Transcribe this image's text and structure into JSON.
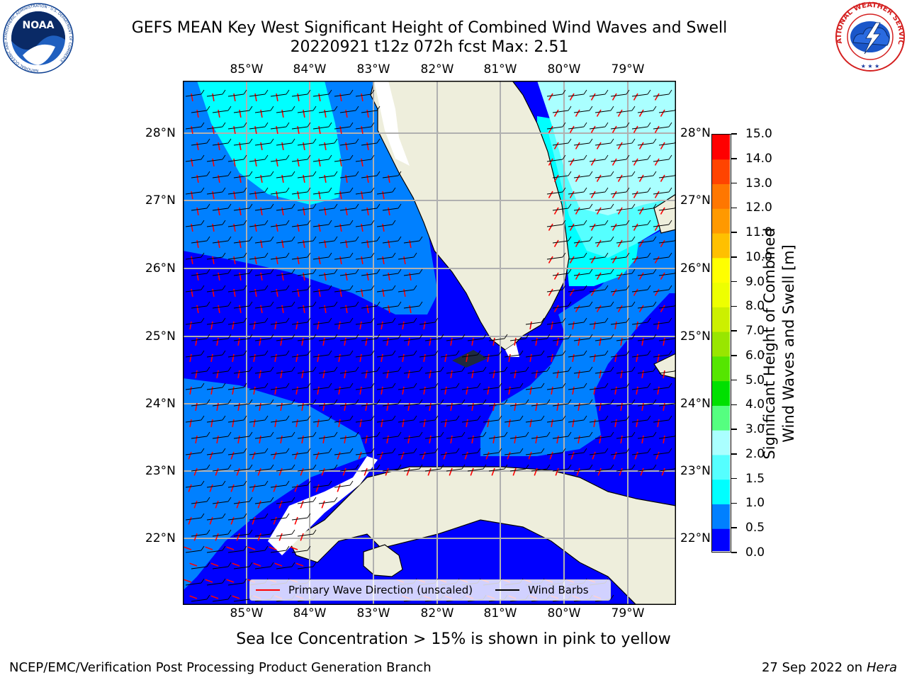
{
  "title_line1": "GEFS MEAN Key West Significant Height of Combined Wind Waves and Swell",
  "title_line2": "20220921 t12z 072h fcst   Max: 2.51",
  "longitude_labels": [
    "85°W",
    "84°W",
    "83°W",
    "82°W",
    "81°W",
    "80°W",
    "79°W"
  ],
  "latitude_labels": [
    "28°N",
    "27°N",
    "26°N",
    "25°N",
    "24°N",
    "23°N",
    "22°N"
  ],
  "colorbar": {
    "title_line1": "Significant Height of Combined",
    "title_line2": "Wind Waves and Swell [m]",
    "tick_labels": [
      "15.0",
      "14.0",
      "13.0",
      "12.0",
      "11.0",
      "10.0",
      "9.0",
      "8.0",
      "7.0",
      "6.0",
      "5.0",
      "4.0",
      "3.0",
      "2.0",
      "1.5",
      "1.0",
      "0.5",
      "0.0"
    ],
    "bands": [
      {
        "from": 0.0,
        "to": 0.5,
        "color": "#0000ff"
      },
      {
        "from": 0.5,
        "to": 1.0,
        "color": "#0080ff"
      },
      {
        "from": 1.0,
        "to": 1.5,
        "color": "#00ffff"
      },
      {
        "from": 1.5,
        "to": 2.0,
        "color": "#55ffff"
      },
      {
        "from": 2.0,
        "to": 3.0,
        "color": "#aaffff"
      },
      {
        "from": 3.0,
        "to": 4.0,
        "color": "#55ff80"
      },
      {
        "from": 4.0,
        "to": 5.0,
        "color": "#00e000"
      },
      {
        "from": 5.0,
        "to": 6.0,
        "color": "#55e600"
      },
      {
        "from": 6.0,
        "to": 7.0,
        "color": "#99e600"
      },
      {
        "from": 7.0,
        "to": 8.0,
        "color": "#ccf000"
      },
      {
        "from": 8.0,
        "to": 9.0,
        "color": "#eeff00"
      },
      {
        "from": 9.0,
        "to": 10.0,
        "color": "#ffff00"
      },
      {
        "from": 10.0,
        "to": 11.0,
        "color": "#ffc000"
      },
      {
        "from": 11.0,
        "to": 12.0,
        "color": "#ff9900"
      },
      {
        "from": 12.0,
        "to": 13.0,
        "color": "#ff7700"
      },
      {
        "from": 13.0,
        "to": 14.0,
        "color": "#ff4400"
      },
      {
        "from": 14.0,
        "to": 15.0,
        "color": "#ff0000"
      }
    ]
  },
  "legend": {
    "wave_direction_label": "Primary Wave Direction (unscaled)",
    "wind_barbs_label": "Wind Barbs",
    "wave_color": "#ff0000",
    "barb_color": "#000000"
  },
  "footnote": "Sea Ice Concentration > 15% is shown in pink to yellow",
  "credit_left": "NCEP/EMC/Verification Post Processing Product Generation Branch",
  "credit_date": "27 Sep 2022 on",
  "credit_host": "Hera",
  "logos": {
    "noaa_text": "NOAA",
    "noaa_ring_text": "NATIONAL OCEANIC AND ATMOSPHERIC ADMINISTRATION · U.S. DEPARTMENT OF COMMERCE",
    "nws_ring_text": "NATIONAL WEATHER SERVICE"
  },
  "colors": {
    "land": "#eeeedc",
    "grid": "#b0b0b0"
  }
}
